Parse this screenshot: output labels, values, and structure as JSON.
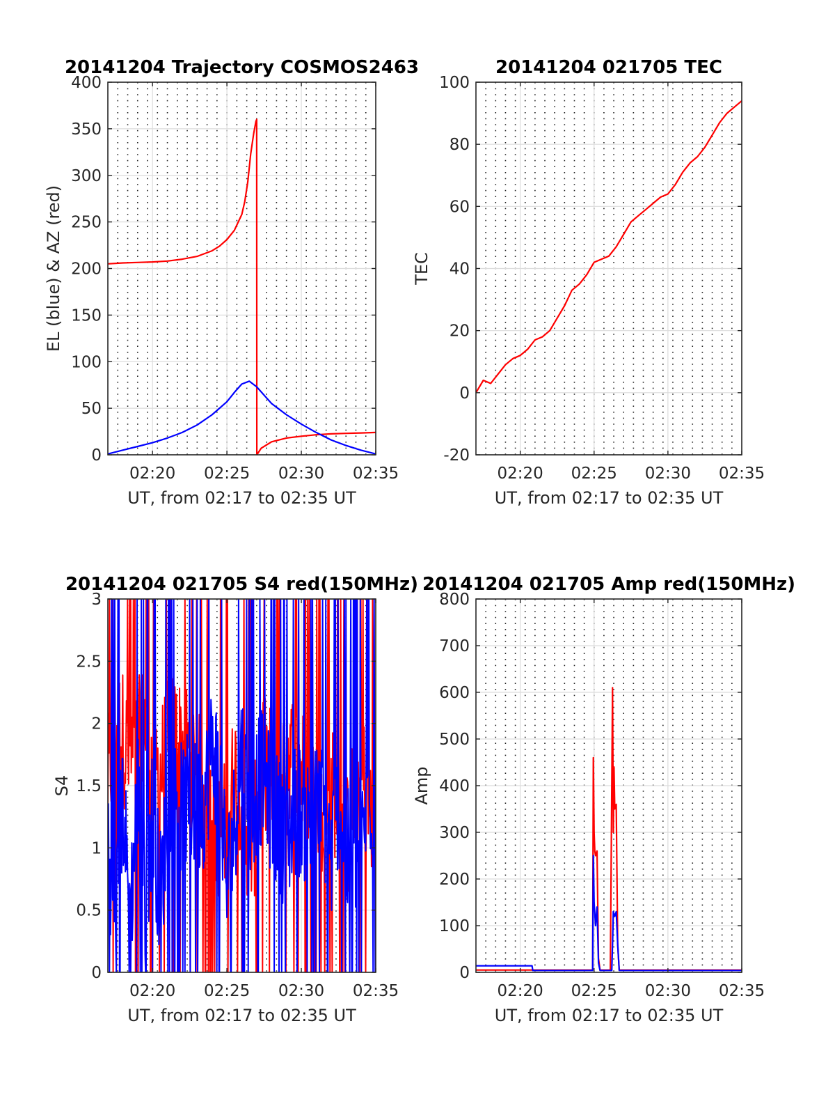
{
  "chart_data": [
    {
      "type": "line",
      "title": "20141204 Trajectory COSMOS2463",
      "xlabel": "UT, from 02:17 to 02:35 UT",
      "ylabel": "EL (blue) & AZ (red)",
      "xlim": [
        0,
        18
      ],
      "ylim": [
        0,
        400
      ],
      "x_ticks": [
        3,
        8,
        13,
        18
      ],
      "x_tick_labels": [
        "02:20",
        "02:25",
        "02:30",
        "02:35"
      ],
      "y_ticks": [
        0,
        50,
        100,
        150,
        200,
        250,
        300,
        350,
        400
      ],
      "y_tick_labels": [
        "0",
        "50",
        "100",
        "150",
        "200",
        "250",
        "300",
        "350",
        "400"
      ],
      "grid": true,
      "minor_grid_x": true,
      "series": [
        {
          "color": "#ff0000",
          "x": [
            0,
            1,
            2,
            3,
            4,
            5,
            6,
            7,
            7.5,
            8,
            8.5,
            9,
            9.2,
            9.4,
            9.6,
            9.8,
            9.95,
            10,
            10.01,
            10.3,
            11,
            12,
            13,
            14,
            15,
            16,
            17,
            18
          ],
          "y": [
            205,
            206,
            206.5,
            207,
            208,
            210,
            213,
            219,
            224,
            231,
            241,
            258,
            272,
            293,
            323,
            345,
            358,
            360,
            0,
            7,
            14,
            18,
            20,
            21.5,
            22.5,
            23,
            23.5,
            24
          ]
        },
        {
          "color": "#0000ff",
          "x": [
            0,
            1,
            2,
            3,
            4,
            5,
            6,
            7,
            8,
            8.5,
            9,
            9.5,
            10,
            10.5,
            11,
            12,
            13,
            14,
            15,
            16,
            17,
            18
          ],
          "y": [
            1,
            5,
            9,
            13,
            18,
            24,
            32,
            43,
            57,
            67,
            76,
            79,
            73,
            64,
            55,
            43,
            33,
            24,
            16,
            10,
            5,
            1
          ]
        }
      ]
    },
    {
      "type": "line",
      "title": "20141204 021705 TEC",
      "xlabel": "UT, from 02:17 to 02:35 UT",
      "ylabel": "TEC",
      "xlim": [
        0,
        18
      ],
      "ylim": [
        -20,
        100
      ],
      "x_ticks": [
        3,
        8,
        13,
        18
      ],
      "x_tick_labels": [
        "02:20",
        "02:25",
        "02:30",
        "02:35"
      ],
      "y_ticks": [
        -20,
        0,
        20,
        40,
        60,
        80,
        100
      ],
      "y_tick_labels": [
        "-20",
        "0",
        "20",
        "40",
        "60",
        "80",
        "100"
      ],
      "grid": true,
      "minor_grid_x": true,
      "series": [
        {
          "color": "#ff0000",
          "x": [
            0,
            0.5,
            1,
            1.5,
            2,
            2.5,
            3,
            3.5,
            4,
            4.5,
            5,
            5.5,
            6,
            6.5,
            7,
            7.5,
            8,
            8.5,
            9,
            9.5,
            10,
            10.5,
            11,
            11.5,
            12,
            12.5,
            13,
            13.5,
            14,
            14.5,
            15,
            15.5,
            16,
            16.5,
            17,
            17.5,
            18
          ],
          "y": [
            0,
            4,
            3,
            6,
            9,
            11,
            12,
            14,
            17,
            18,
            20,
            24,
            28,
            33,
            35,
            38,
            42,
            43,
            44,
            47,
            51,
            55,
            57,
            59,
            61,
            63,
            64,
            67,
            71,
            74,
            76,
            79,
            83,
            87,
            90,
            92,
            94
          ]
        }
      ]
    },
    {
      "type": "line",
      "title": "20141204 021705 S4 red(150MHz)",
      "xlabel": "UT, from 02:17 to 02:35 UT",
      "ylabel": "S4",
      "xlim": [
        0,
        18
      ],
      "ylim": [
        0,
        3
      ],
      "x_ticks": [
        3,
        8,
        13,
        18
      ],
      "x_tick_labels": [
        "02:20",
        "02:25",
        "02:30",
        "02:35"
      ],
      "y_ticks": [
        0,
        0.5,
        1,
        1.5,
        2,
        2.5,
        3
      ],
      "y_tick_labels": [
        "0",
        "0.5",
        "1",
        "1.5",
        "2",
        "2.5",
        "3"
      ],
      "grid": true,
      "minor_grid_x": true,
      "noisy": true,
      "series": [
        {
          "color": "#ff0000",
          "x": [
            0,
            0.5,
            1,
            1.5,
            2,
            2.5,
            3,
            3.5,
            4,
            4.5,
            5,
            5.5,
            6,
            6.5,
            7,
            7.5,
            8,
            8.5,
            9,
            9.5,
            10,
            10.5,
            11,
            11.5,
            12,
            12.5,
            13,
            13.5,
            14,
            14.5,
            15,
            15.5,
            16,
            16.5,
            17,
            17.5,
            18
          ],
          "y": [
            1.5,
            2.0,
            1.9,
            1.7,
            1.8,
            2.0,
            1.6,
            1.6,
            1.8,
            1.9,
            1.8,
            1.8,
            1.6,
            1.4,
            1.3,
            1.1,
            1.2,
            1.6,
            1.5,
            1.0,
            1.2,
            1.7,
            1.6,
            1.6,
            1.8,
            1.7,
            1.6,
            1.5,
            1.3,
            1.1,
            1.4,
            1.5,
            1.0,
            1.4,
            1.6,
            1.4,
            1.2
          ]
        },
        {
          "color": "#0000ff",
          "x": [
            0,
            0.5,
            1,
            1.5,
            2,
            2.5,
            3,
            3.5,
            4,
            4.5,
            5,
            5.5,
            6,
            6.5,
            7,
            7.5,
            8,
            8.5,
            9,
            9.5,
            10,
            10.5,
            11,
            11.5,
            12,
            12.5,
            13,
            13.5,
            14,
            14.5,
            15,
            15.5,
            16,
            16.5,
            17,
            17.5,
            18
          ],
          "y": [
            1.1,
            0.4,
            1.4,
            0.4,
            1.5,
            0.6,
            1.3,
            0.6,
            1.2,
            1.4,
            1.3,
            1.4,
            1.3,
            1.4,
            1.8,
            1.6,
            0.7,
            1.2,
            1.8,
            1.2,
            1.5,
            1.6,
            1.3,
            1.2,
            1.0,
            1.3,
            1.3,
            1.2,
            1.3,
            1.3,
            0.9,
            1.4,
            0.9,
            1.0,
            0.9,
            1.5,
            1.3
          ]
        }
      ]
    },
    {
      "type": "line",
      "title": "20141204 021705 Amp red(150MHz)",
      "xlabel": "UT, from 02:17 to 02:35 UT",
      "ylabel": "Amp",
      "xlim": [
        0,
        18
      ],
      "ylim": [
        0,
        800
      ],
      "x_ticks": [
        3,
        8,
        13,
        18
      ],
      "x_tick_labels": [
        "02:20",
        "02:25",
        "02:30",
        "02:35"
      ],
      "y_ticks": [
        0,
        100,
        200,
        300,
        400,
        500,
        600,
        700,
        800
      ],
      "y_tick_labels": [
        "0",
        "100",
        "200",
        "300",
        "400",
        "500",
        "600",
        "700",
        "800"
      ],
      "grid": true,
      "minor_grid_x": true,
      "series": [
        {
          "color": "#ff0000",
          "x": [
            0,
            7.9,
            7.95,
            8.0,
            8.05,
            8.1,
            8.2,
            8.3,
            8.4,
            9.1,
            9.2,
            9.25,
            9.3,
            9.35,
            9.4,
            9.5,
            9.6,
            9.7,
            18
          ],
          "y": [
            5,
            5,
            460,
            300,
            260,
            250,
            260,
            30,
            5,
            5,
            400,
            610,
            300,
            440,
            350,
            360,
            60,
            5,
            5
          ]
        },
        {
          "color": "#0000ff",
          "x": [
            0,
            3.8,
            3.85,
            7.9,
            7.95,
            8.0,
            8.1,
            8.2,
            8.3,
            8.4,
            9.2,
            9.25,
            9.3,
            9.4,
            9.5,
            9.6,
            9.7,
            18
          ],
          "y": [
            14,
            14,
            4,
            4,
            250,
            150,
            100,
            140,
            20,
            4,
            4,
            60,
            130,
            120,
            130,
            60,
            4,
            4
          ]
        }
      ]
    }
  ]
}
